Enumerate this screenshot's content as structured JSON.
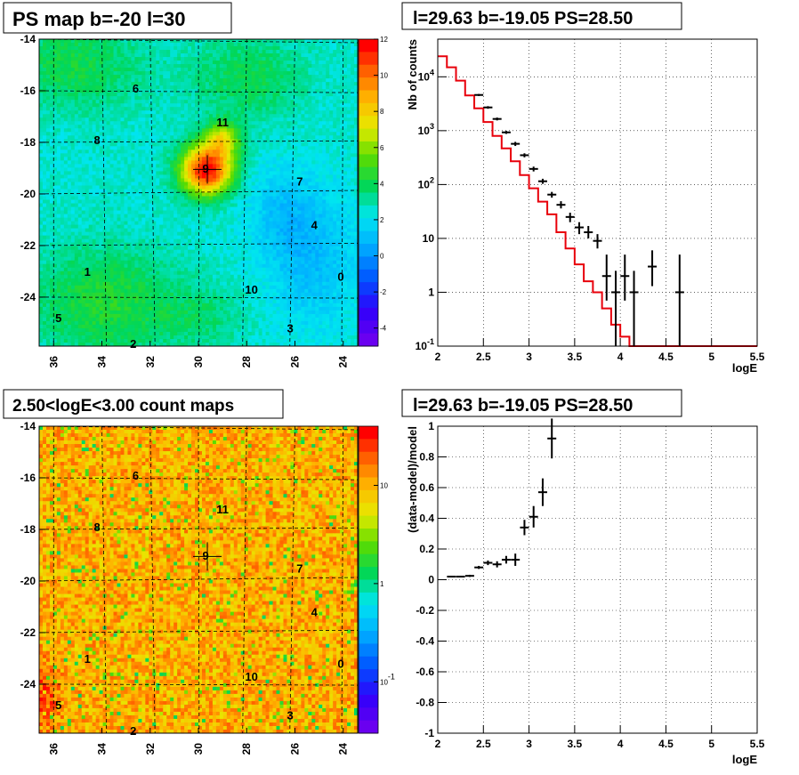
{
  "chart_data": [
    {
      "type": "heatmap",
      "title": "PS map b=-20 l=30",
      "x_ticks": [
        "36",
        "34",
        "32",
        "30",
        "28",
        "26",
        "24"
      ],
      "x_tick_values": [
        36,
        34,
        32,
        30,
        28,
        26,
        24
      ],
      "xlim": [
        36.6,
        23.4
      ],
      "y_ticks": [
        "-14",
        "-16",
        "-18",
        "-20",
        "-22",
        "-24"
      ],
      "y_tick_values": [
        -14,
        -16,
        -18,
        -20,
        -22,
        -24
      ],
      "ylim": [
        -25.9,
        -14
      ],
      "colorbar": {
        "scale": "linear",
        "min": -5,
        "max": 12,
        "ticks": [
          "12",
          "10",
          "8",
          "6",
          "4",
          "2",
          "0",
          "-2",
          "-4"
        ],
        "tick_values": [
          12,
          10,
          8,
          6,
          4,
          2,
          0,
          -2,
          -4
        ]
      },
      "sources": [
        {
          "label": "0",
          "l": 24.1,
          "b": -23.2
        },
        {
          "label": "1",
          "l": 34.6,
          "b": -23.0
        },
        {
          "label": "2",
          "l": 32.7,
          "b": -25.8
        },
        {
          "label": "3",
          "l": 26.2,
          "b": -25.2
        },
        {
          "label": "4",
          "l": 25.2,
          "b": -21.2
        },
        {
          "label": "5",
          "l": 35.8,
          "b": -24.8
        },
        {
          "label": "6",
          "l": 32.6,
          "b": -15.9
        },
        {
          "label": "7",
          "l": 25.8,
          "b": -19.5
        },
        {
          "label": "8",
          "l": 34.2,
          "b": -17.9
        },
        {
          "label": "9",
          "l": 29.7,
          "b": -19.0
        },
        {
          "label": "10",
          "l": 27.8,
          "b": -23.7
        },
        {
          "label": "11",
          "l": 29.0,
          "b": -17.2
        }
      ],
      "marker": {
        "l": 29.63,
        "b": -19.05
      }
    },
    {
      "type": "line",
      "title": "l=29.63 b=-19.05 PS=28.50",
      "xlabel": "logE",
      "ylabel": "Nb of counts",
      "xlim": [
        2,
        5.5
      ],
      "ylim": [
        0.1,
        50000
      ],
      "yscale": "log",
      "grid": true,
      "x_ticks": [
        "2",
        "2.5",
        "3",
        "3.5",
        "4",
        "4.5",
        "5",
        "5.5"
      ],
      "x_tick_values": [
        2,
        2.5,
        3,
        3.5,
        4,
        4.5,
        5,
        5.5
      ],
      "y_ticks": [
        "10^{-1}",
        "1",
        "10",
        "10^{2}",
        "10^{3}",
        "10^{4}"
      ],
      "y_tick_values": [
        0.1,
        1,
        10,
        100,
        1000,
        10000
      ],
      "model_bin_edges": [
        2.0,
        2.1,
        2.2,
        2.3,
        2.4,
        2.5,
        2.6,
        2.7,
        2.8,
        2.9,
        3.0,
        3.1,
        3.2,
        3.3,
        3.4,
        3.5,
        3.6,
        3.7,
        3.8,
        3.9,
        4.0,
        4.1,
        4.2,
        5.5
      ],
      "model_values": [
        24000,
        15000,
        8500,
        4500,
        2600,
        1450,
        800,
        470,
        270,
        150,
        85,
        48,
        28,
        13,
        6.5,
        3.3,
        1.6,
        1.0,
        0.5,
        0.25,
        0.15,
        0.1,
        0.1
      ],
      "model_color": "#e8000b",
      "data_points": [
        {
          "x": 2.45,
          "y": 4600,
          "ylo": 4400,
          "yhi": 4800
        },
        {
          "x": 2.55,
          "y": 2700,
          "ylo": 2550,
          "yhi": 2850
        },
        {
          "x": 2.65,
          "y": 1650,
          "ylo": 1550,
          "yhi": 1750
        },
        {
          "x": 2.75,
          "y": 930,
          "ylo": 870,
          "yhi": 990
        },
        {
          "x": 2.85,
          "y": 570,
          "ylo": 520,
          "yhi": 620
        },
        {
          "x": 2.95,
          "y": 350,
          "ylo": 320,
          "yhi": 380
        },
        {
          "x": 3.05,
          "y": 195,
          "ylo": 175,
          "yhi": 215
        },
        {
          "x": 3.15,
          "y": 115,
          "ylo": 103,
          "yhi": 128
        },
        {
          "x": 3.25,
          "y": 65,
          "ylo": 57,
          "yhi": 73
        },
        {
          "x": 3.35,
          "y": 42,
          "ylo": 36,
          "yhi": 49
        },
        {
          "x": 3.45,
          "y": 25,
          "ylo": 20,
          "yhi": 30
        },
        {
          "x": 3.55,
          "y": 16,
          "ylo": 12,
          "yhi": 20
        },
        {
          "x": 3.65,
          "y": 13,
          "ylo": 10,
          "yhi": 17
        },
        {
          "x": 3.75,
          "y": 9,
          "ylo": 6.5,
          "yhi": 12
        },
        {
          "x": 3.85,
          "y": 2,
          "ylo": 0.7,
          "yhi": 5
        },
        {
          "x": 3.95,
          "y": 1,
          "ylo": 0.1,
          "yhi": 2.5
        },
        {
          "x": 4.05,
          "y": 2,
          "ylo": 0.7,
          "yhi": 5
        },
        {
          "x": 4.15,
          "y": 1,
          "ylo": 0.1,
          "yhi": 2.5
        },
        {
          "x": 4.35,
          "y": 3,
          "ylo": 1.3,
          "yhi": 6
        },
        {
          "x": 4.65,
          "y": 1,
          "ylo": 0.1,
          "yhi": 5
        }
      ]
    },
    {
      "type": "heatmap",
      "title": "2.50<logE<3.00 count maps",
      "x_ticks": [
        "36",
        "34",
        "32",
        "30",
        "28",
        "26",
        "24"
      ],
      "x_tick_values": [
        36,
        34,
        32,
        30,
        28,
        26,
        24
      ],
      "xlim": [
        36.6,
        23.4
      ],
      "y_ticks": [
        "-14",
        "-16",
        "-18",
        "-20",
        "-22",
        "-24"
      ],
      "y_tick_values": [
        -14,
        -16,
        -18,
        -20,
        -22,
        -24
      ],
      "ylim": [
        -25.9,
        -14
      ],
      "colorbar": {
        "scale": "log",
        "min": 0.03,
        "max": 40,
        "ticks": [
          "10",
          "1",
          "10^{-1}"
        ],
        "tick_values": [
          10,
          1,
          0.1
        ]
      },
      "marker": {
        "l": 29.63,
        "b": -19.05
      }
    },
    {
      "type": "scatter",
      "title": "l=29.63 b=-19.05 PS=28.50",
      "xlabel": "logE",
      "ylabel": "(data-model)/model",
      "xlim": [
        2,
        5.5
      ],
      "ylim": [
        -1,
        1
      ],
      "grid": true,
      "x_ticks": [
        "2",
        "2.5",
        "3",
        "3.5",
        "4",
        "4.5",
        "5",
        "5.5"
      ],
      "x_tick_values": [
        2,
        2.5,
        3,
        3.5,
        4,
        4.5,
        5,
        5.5
      ],
      "y_ticks": [
        "-1",
        "-0.8",
        "-0.6",
        "-0.4",
        "-0.2",
        "0",
        "0.2",
        "0.4",
        "0.6",
        "0.8",
        "1"
      ],
      "y_tick_values": [
        -1,
        -0.8,
        -0.6,
        -0.4,
        -0.2,
        0,
        0.2,
        0.4,
        0.6,
        0.8,
        1
      ],
      "data_points": [
        {
          "x": 2.15,
          "y": 0.02,
          "err": 0.004
        },
        {
          "x": 2.25,
          "y": 0.02,
          "err": 0.005
        },
        {
          "x": 2.35,
          "y": 0.025,
          "err": 0.007
        },
        {
          "x": 2.45,
          "y": 0.08,
          "err": 0.01
        },
        {
          "x": 2.55,
          "y": 0.11,
          "err": 0.015
        },
        {
          "x": 2.65,
          "y": 0.1,
          "err": 0.02
        },
        {
          "x": 2.75,
          "y": 0.13,
          "err": 0.025
        },
        {
          "x": 2.85,
          "y": 0.13,
          "err": 0.04
        },
        {
          "x": 2.95,
          "y": 0.34,
          "err": 0.05
        },
        {
          "x": 3.05,
          "y": 0.41,
          "err": 0.07
        },
        {
          "x": 3.15,
          "y": 0.57,
          "err": 0.09
        },
        {
          "x": 3.25,
          "y": 0.92,
          "err": 0.13
        }
      ]
    }
  ]
}
